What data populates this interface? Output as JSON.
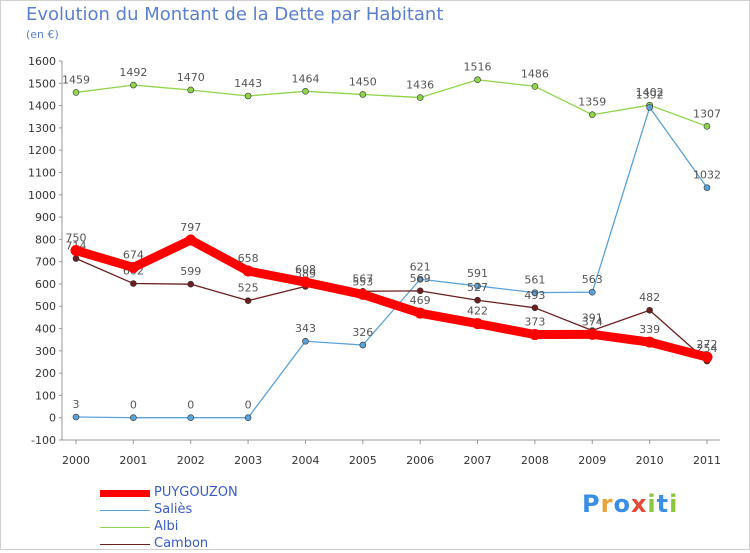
{
  "title": "Evolution du Montant de la Dette par Habitant",
  "subtitle": "(en €)",
  "logo": {
    "letters": [
      "P",
      "r",
      "o",
      "x",
      "i",
      "t",
      "i"
    ],
    "colors": [
      "#3a8ee6",
      "#e8a33a",
      "#3a8ee6",
      "#e84a3a",
      "#8cc63f",
      "#3a8ee6",
      "#8cc63f"
    ]
  },
  "chart_data": {
    "type": "line",
    "categories": [
      "2000",
      "2001",
      "2002",
      "2003",
      "2004",
      "2005",
      "2006",
      "2007",
      "2008",
      "2009",
      "2010",
      "2011"
    ],
    "ylim": [
      -100,
      1600
    ],
    "yticks": [
      -100,
      0,
      100,
      200,
      300,
      400,
      500,
      600,
      700,
      800,
      900,
      1000,
      1100,
      1200,
      1300,
      1400,
      1500,
      1600
    ],
    "grid": false,
    "legend_position": "bottom-left",
    "series": [
      {
        "name": "Albi",
        "color": "#8fd44a",
        "values": [
          1459,
          1492,
          1470,
          1443,
          1464,
          1450,
          1436,
          1516,
          1486,
          1359,
          1402,
          1307
        ]
      },
      {
        "name": "Saliès",
        "color": "#5aa2d8",
        "values": [
          3,
          0,
          0,
          0,
          343,
          326,
          621,
          591,
          561,
          563,
          1392,
          1032
        ]
      },
      {
        "name": "Cambon",
        "color": "#6b1f1f",
        "values": [
          714,
          602,
          599,
          525,
          589,
          567,
          569,
          527,
          493,
          391,
          482,
          254
        ]
      },
      {
        "name": "PUYGOUZON",
        "color": "#ff0000",
        "values": [
          750,
          674,
          797,
          658,
          608,
          553,
          469,
          422,
          373,
          374,
          339,
          272
        ]
      }
    ]
  }
}
